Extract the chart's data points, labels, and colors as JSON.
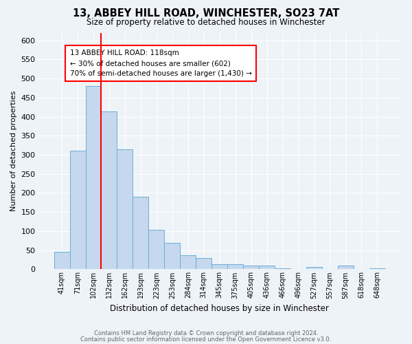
{
  "title": "13, ABBEY HILL ROAD, WINCHESTER, SO23 7AT",
  "subtitle": "Size of property relative to detached houses in Winchester",
  "xlabel": "Distribution of detached houses by size in Winchester",
  "ylabel": "Number of detached properties",
  "bar_labels": [
    "41sqm",
    "71sqm",
    "102sqm",
    "132sqm",
    "162sqm",
    "193sqm",
    "223sqm",
    "253sqm",
    "284sqm",
    "314sqm",
    "345sqm",
    "375sqm",
    "405sqm",
    "436sqm",
    "466sqm",
    "496sqm",
    "527sqm",
    "557sqm",
    "587sqm",
    "618sqm",
    "648sqm"
  ],
  "bar_heights": [
    46,
    311,
    480,
    413,
    314,
    190,
    104,
    69,
    37,
    30,
    14,
    14,
    10,
    10,
    3,
    0,
    7,
    0,
    10,
    0,
    3
  ],
  "bar_color": "#c5d8ed",
  "bar_edge_color": "#6aaed6",
  "background_color": "#eef3f8",
  "grid_color": "#ffffff",
  "vline_x": 2.5,
  "vline_color": "red",
  "annotation_title": "13 ABBEY HILL ROAD: 118sqm",
  "annotation_line1": "← 30% of detached houses are smaller (602)",
  "annotation_line2": "70% of semi-detached houses are larger (1,430) →",
  "annotation_box_color": "white",
  "annotation_box_edge": "red",
  "ylim": [
    0,
    620
  ],
  "yticks": [
    0,
    50,
    100,
    150,
    200,
    250,
    300,
    350,
    400,
    450,
    500,
    550,
    600
  ],
  "footer1": "Contains HM Land Registry data © Crown copyright and database right 2024.",
  "footer2": "Contains public sector information licensed under the Open Government Licence v3.0."
}
